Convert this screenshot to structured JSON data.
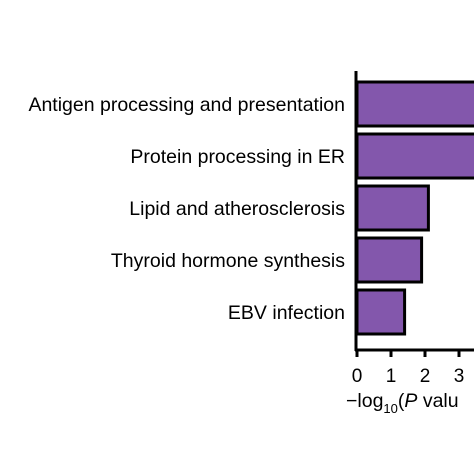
{
  "chart_data": {
    "type": "bar",
    "orientation": "horizontal",
    "title": "",
    "categories": [
      "Antigen processing and presentation",
      "Protein processing in ER",
      "Lipid and atherosclerosis",
      "Thyroid hormone synthesis",
      "EBV infection"
    ],
    "values": [
      3.6,
      3.6,
      2.1,
      1.9,
      1.4
    ],
    "xlabel": {
      "prefix": "−log",
      "subscript": "10",
      "open": "(",
      "italic": "P",
      "rest": " valu"
    },
    "xticks": [
      "0",
      "1",
      "2",
      "3"
    ],
    "xlim": [
      0,
      3.6
    ],
    "grid": false,
    "legend": "none",
    "bar_color": "#8357ac",
    "edge_color": "#000000"
  }
}
